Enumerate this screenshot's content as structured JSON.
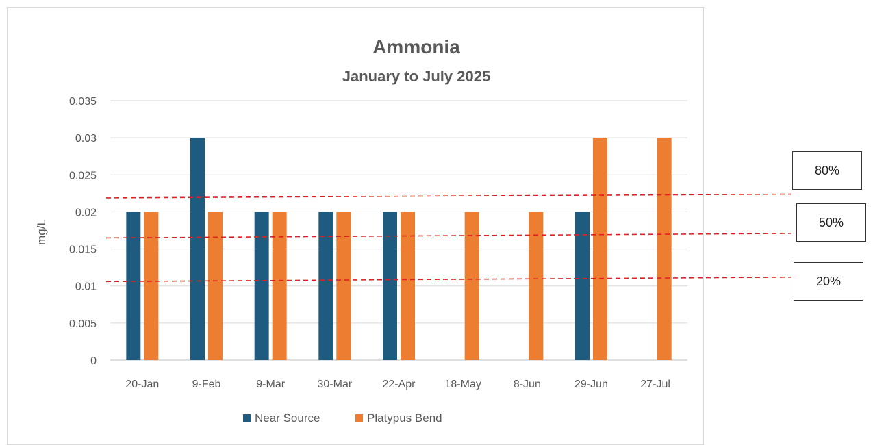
{
  "chart_data": {
    "type": "bar",
    "title": "Ammonia",
    "subtitle": "January to July 2025",
    "ylabel": "mg/L",
    "xlabel": "",
    "ylim": [
      0,
      0.035
    ],
    "yticks": [
      "0",
      "0.005",
      "0.01",
      "0.015",
      "0.02",
      "0.025",
      "0.03",
      "0.035"
    ],
    "yticks_values": [
      0,
      0.005,
      0.01,
      0.015,
      0.02,
      0.025,
      0.03,
      0.035
    ],
    "categories": [
      "20-Jan",
      "9-Feb",
      "9-Mar",
      "30-Mar",
      "22-Apr",
      "18-May",
      "8-Jun",
      "29-Jun",
      "27-Jul"
    ],
    "series": [
      {
        "name": "Near Source",
        "color": "#1f5a7f",
        "values": [
          0.02,
          0.03,
          0.02,
          0.02,
          0.02,
          null,
          null,
          0.02,
          null
        ]
      },
      {
        "name": "Platypus Bend",
        "color": "#ed7d31",
        "values": [
          0.02,
          0.02,
          0.02,
          0.02,
          0.02,
          0.02,
          0.02,
          0.03,
          0.03
        ]
      }
    ],
    "grid": true,
    "legend": "bottom",
    "reference_lines": [
      {
        "label": "80%",
        "color": "#e02020",
        "y_start": 0.0218,
        "y_end": 0.0223
      },
      {
        "label": "50%",
        "color": "#e02020",
        "y_start": 0.0164,
        "y_end": 0.017
      },
      {
        "label": "20%",
        "color": "#e02020",
        "y_start": 0.0105,
        "y_end": 0.0111
      }
    ]
  }
}
